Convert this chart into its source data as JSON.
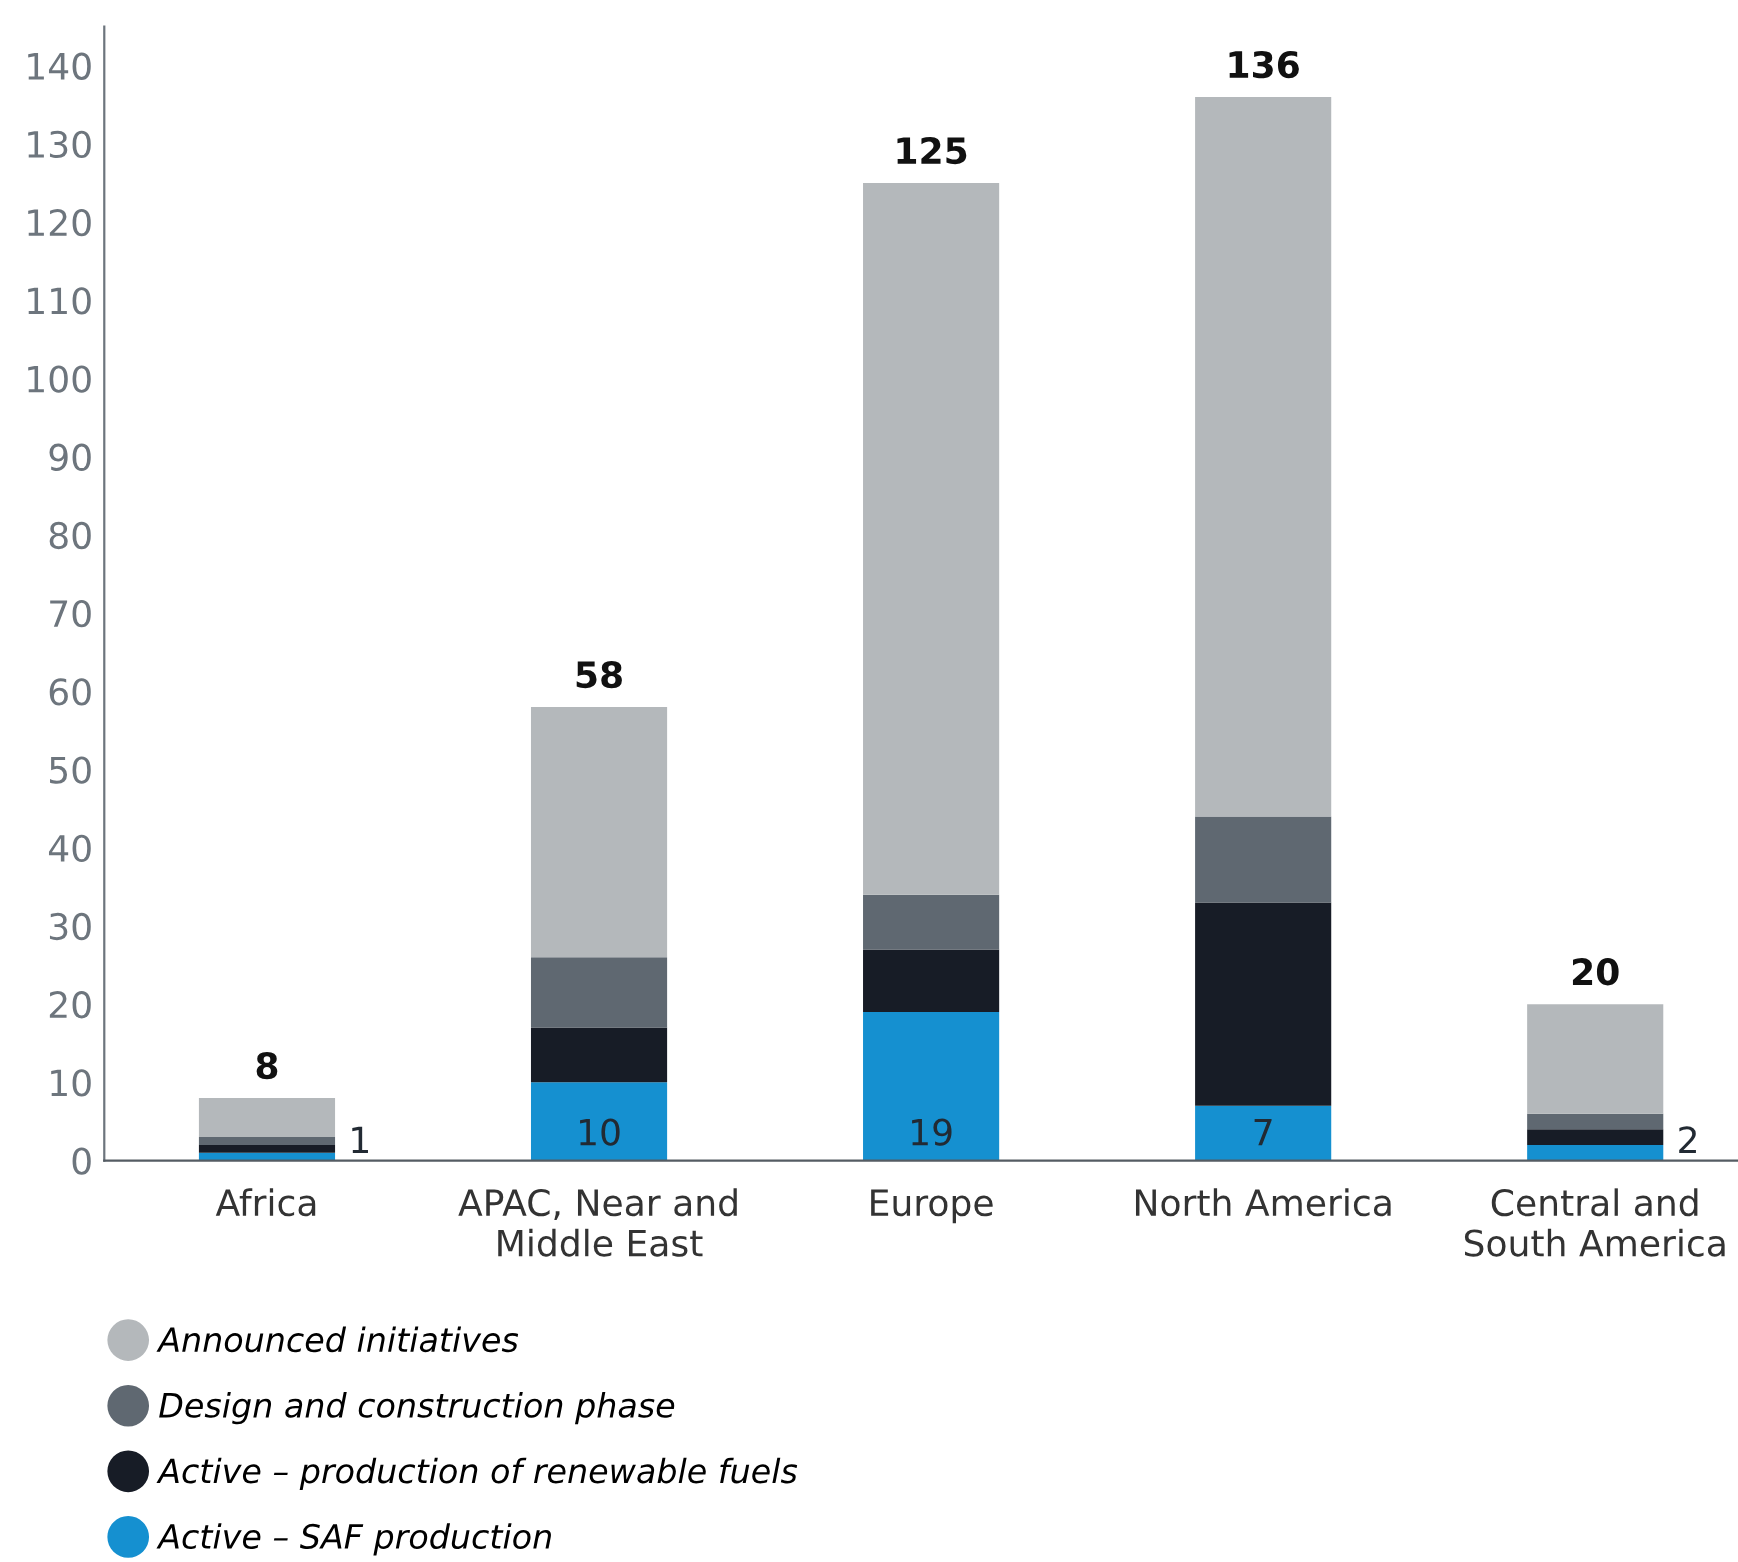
{
  "chart_data": {
    "type": "bar",
    "stacked": true,
    "categories": [
      "Africa",
      "APAC, Near and\nMiddle East",
      "Europe",
      "North America",
      "Central and\nSouth America"
    ],
    "series": [
      {
        "name": "Active – SAF production",
        "color": "#1590d0",
        "values": [
          1,
          10,
          19,
          7,
          2
        ],
        "value_labels": [
          "1",
          "10",
          "19",
          "7",
          "2"
        ]
      },
      {
        "name": "Active – production of renewable fuels",
        "color": "#171c26",
        "values": [
          1,
          7,
          8,
          26,
          2
        ]
      },
      {
        "name": "Design and construction phase",
        "color": "#5f6871",
        "values": [
          1,
          9,
          7,
          11,
          2
        ]
      },
      {
        "name": "Announced initiatives",
        "color": "#b4b8bb",
        "values": [
          5,
          32,
          91,
          92,
          14
        ]
      }
    ],
    "totals": [
      "8",
      "58",
      "125",
      "136",
      "20"
    ],
    "ylim": [
      0,
      145
    ],
    "yticks": [
      0,
      10,
      20,
      30,
      40,
      50,
      60,
      70,
      80,
      90,
      100,
      110,
      120,
      130,
      140
    ],
    "grid": false,
    "legend": "bottom left"
  }
}
